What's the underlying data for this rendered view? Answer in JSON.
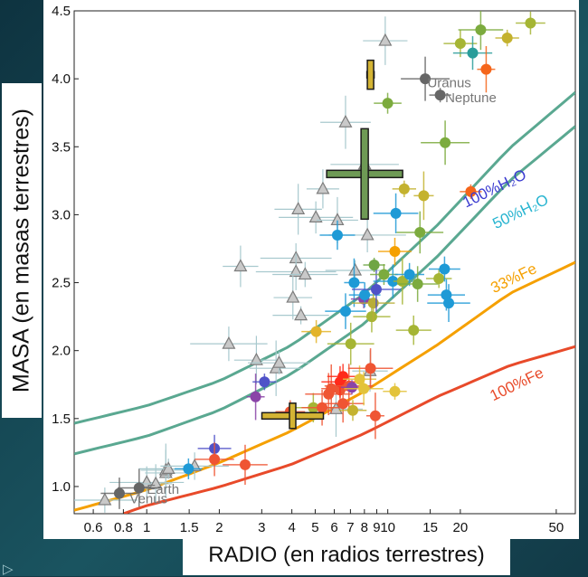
{
  "axes": {
    "ylabel": "MASA (en masas terrestres)",
    "xlabel": "RADIO (en radios terrestres)"
  },
  "nav": {
    "arrow_icon": "play-outline-icon"
  },
  "chart_data": {
    "type": "scatter",
    "x": {
      "scale": "log",
      "lim": [
        0.5,
        60
      ],
      "ticks": [
        0.6,
        0.8,
        1,
        1.5,
        2,
        3,
        4,
        5,
        6,
        7,
        8,
        9,
        10,
        15,
        20,
        50
      ],
      "tick_labels": [
        "0.6",
        "0.8",
        "1",
        "1.5",
        "2",
        "3",
        "4",
        "5",
        "6",
        "7",
        "8",
        "9",
        "10",
        "15",
        "20",
        "50"
      ]
    },
    "y": {
      "lim": [
        0.8,
        4.5
      ],
      "ticks": [
        1.0,
        1.5,
        2.0,
        2.5,
        3.0,
        3.5,
        4.0,
        4.5
      ],
      "tick_labels": [
        "1.0",
        "1.5",
        "2.0",
        "2.5",
        "3.0",
        "3.5",
        "4.0",
        "4.5"
      ]
    },
    "grid": false,
    "curves": [
      {
        "label": "100%H₂O",
        "color": "#3b3bd0",
        "line_color": "#5aa891",
        "x": [
          0.5,
          1,
          2,
          4,
          8,
          16,
          32,
          60
        ],
        "y": [
          1.465,
          1.594,
          1.776,
          2.04,
          2.42,
          2.92,
          3.49,
          3.9
        ],
        "label_at": [
          28.3,
          3.16
        ]
      },
      {
        "label": "50%H₂O",
        "color": "#27b4d0",
        "line_color": "#5aa891",
        "x": [
          0.5,
          1,
          2,
          4,
          8,
          16,
          32,
          60
        ],
        "y": [
          1.24,
          1.37,
          1.56,
          1.83,
          2.2,
          2.69,
          3.25,
          3.65
        ],
        "label_at": [
          36.3,
          2.99
        ]
      },
      {
        "label": "33%Fe",
        "color": "#f5a000",
        "line_color": "#f5a000",
        "x": [
          0.5,
          1,
          2,
          4,
          8,
          16,
          32,
          60
        ],
        "y": [
          0.825,
          0.975,
          1.175,
          1.41,
          1.7,
          2.04,
          2.42,
          2.65
        ],
        "label_at": [
          34.0,
          2.5
        ]
      },
      {
        "label": "100%Fe",
        "color": "#e84a2a",
        "line_color": "#e84a2a",
        "x": [
          0.8,
          1,
          2,
          4,
          8,
          16,
          32,
          60
        ],
        "y": [
          0.8,
          0.86,
          0.997,
          1.164,
          1.39,
          1.66,
          1.89,
          2.03
        ],
        "label_at": [
          35.0,
          1.72
        ]
      }
    ],
    "annotations": [
      {
        "text": "Uranus",
        "x": 14.6,
        "y": 3.97,
        "color": "#777777"
      },
      {
        "text": "Neptune",
        "x": 17.3,
        "y": 3.86,
        "color": "#777777"
      },
      {
        "text": "Earth",
        "x": 1.0,
        "y": 0.98,
        "color": "#777777"
      },
      {
        "text": "Venus",
        "x": 0.85,
        "y": 0.91,
        "color": "#777777"
      }
    ],
    "points": [
      {
        "shape": "triangle",
        "x": 0.67,
        "y": 0.9
      },
      {
        "shape": "triangle",
        "x": 1.0,
        "y": 1.03
      },
      {
        "shape": "triangle",
        "x": 1.09,
        "y": 1.02
      },
      {
        "shape": "triangle",
        "x": 1.2,
        "y": 1.1
      },
      {
        "shape": "triangle",
        "x": 1.2,
        "y": 1.12
      },
      {
        "shape": "triangle",
        "x": 1.23,
        "y": 1.13
      },
      {
        "shape": "triangle",
        "x": 1.58,
        "y": 1.15
      },
      {
        "shape": "triangle",
        "x": 2.19,
        "y": 2.05
      },
      {
        "shape": "triangle",
        "x": 2.45,
        "y": 2.62
      },
      {
        "shape": "triangle",
        "x": 2.85,
        "y": 1.93
      },
      {
        "shape": "triangle",
        "x": 3.44,
        "y": 1.87
      },
      {
        "shape": "triangle",
        "x": 3.54,
        "y": 1.91
      },
      {
        "shape": "triangle",
        "x": 4.16,
        "y": 2.68
      },
      {
        "shape": "triangle",
        "x": 4.16,
        "y": 2.58
      },
      {
        "shape": "triangle",
        "x": 4.04,
        "y": 2.39
      },
      {
        "shape": "triangle",
        "x": 4.25,
        "y": 3.04
      },
      {
        "shape": "triangle",
        "x": 4.36,
        "y": 2.26
      },
      {
        "shape": "triangle",
        "x": 4.54,
        "y": 2.56
      },
      {
        "shape": "triangle",
        "x": 5.03,
        "y": 2.98
      },
      {
        "shape": "triangle",
        "x": 5.38,
        "y": 3.19
      },
      {
        "shape": "triangle",
        "x": 6.18,
        "y": 2.96
      },
      {
        "shape": "triangle",
        "x": 6.68,
        "y": 3.68
      },
      {
        "shape": "triangle",
        "x": 7.32,
        "y": 2.59
      },
      {
        "shape": "triangle",
        "x": 8.02,
        "y": 3.37
      },
      {
        "shape": "triangle",
        "x": 8.23,
        "y": 2.85
      },
      {
        "shape": "triangle",
        "x": 8.44,
        "y": 1.85
      },
      {
        "shape": "triangle",
        "x": 9.76,
        "y": 4.28
      },
      {
        "shape": "triangle",
        "x": 6.1,
        "y": 1.57
      },
      {
        "shape": "dot",
        "x": 0.77,
        "y": 0.95,
        "color": "#666666"
      },
      {
        "shape": "dot",
        "x": 0.93,
        "y": 0.99,
        "color": "#666666"
      },
      {
        "shape": "dot",
        "x": 14.3,
        "y": 4.0,
        "color": "#666666"
      },
      {
        "shape": "dot",
        "x": 16.5,
        "y": 3.88,
        "color": "#666666"
      },
      {
        "shape": "dot",
        "x": 1.49,
        "y": 1.13,
        "color": "#1e9ad6"
      },
      {
        "shape": "dot",
        "x": 1.91,
        "y": 1.28,
        "color": "#4f52c8"
      },
      {
        "shape": "dot",
        "x": 1.91,
        "y": 1.2,
        "color": "#ef5533"
      },
      {
        "shape": "dot",
        "x": 2.56,
        "y": 1.16,
        "color": "#ef5533"
      },
      {
        "shape": "dot",
        "x": 2.83,
        "y": 1.66,
        "color": "#8a44a8"
      },
      {
        "shape": "dot",
        "x": 3.08,
        "y": 1.77,
        "color": "#4f52c8"
      },
      {
        "shape": "dot",
        "x": 3.94,
        "y": 1.55,
        "color": "#ef5533"
      },
      {
        "shape": "dot",
        "x": 4.91,
        "y": 1.58,
        "color": "#a5b534"
      },
      {
        "shape": "dot",
        "x": 5.34,
        "y": 1.58,
        "color": "#ef5533"
      },
      {
        "shape": "dot",
        "x": 5.68,
        "y": 1.68,
        "color": "#ef5533"
      },
      {
        "shape": "dot",
        "x": 5.83,
        "y": 1.72,
        "color": "#ef5533"
      },
      {
        "shape": "dot",
        "x": 6.34,
        "y": 1.71,
        "color": "#ef5533"
      },
      {
        "shape": "dot",
        "x": 6.52,
        "y": 1.81,
        "color": "#ff2a1a"
      },
      {
        "shape": "dot",
        "x": 6.34,
        "y": 1.77,
        "color": "#ff2a1a"
      },
      {
        "shape": "dot",
        "x": 6.52,
        "y": 1.61,
        "color": "#ef5533"
      },
      {
        "shape": "dot",
        "x": 6.9,
        "y": 1.74,
        "color": "#ef5533"
      },
      {
        "shape": "dot",
        "x": 7.1,
        "y": 1.73,
        "color": "#8a44a8"
      },
      {
        "shape": "dot",
        "x": 7.16,
        "y": 1.56,
        "color": "#c4b22e"
      },
      {
        "shape": "dot",
        "x": 7.64,
        "y": 1.79,
        "color": "#e3c33a"
      },
      {
        "shape": "dot",
        "x": 7.95,
        "y": 1.72,
        "color": "#e3c33a"
      },
      {
        "shape": "dot",
        "x": 8.48,
        "y": 1.87,
        "color": "#ef5533"
      },
      {
        "shape": "dot",
        "x": 8.88,
        "y": 1.52,
        "color": "#ef5533"
      },
      {
        "shape": "dot",
        "x": 10.7,
        "y": 1.7,
        "color": "#e3c33a"
      },
      {
        "shape": "dot",
        "x": 5.05,
        "y": 2.14,
        "color": "#e3b42a"
      },
      {
        "shape": "dot",
        "x": 6.18,
        "y": 2.85,
        "color": "#1e9ad6"
      },
      {
        "shape": "dot",
        "x": 6.68,
        "y": 2.29,
        "color": "#1e9ad6"
      },
      {
        "shape": "dot",
        "x": 7.02,
        "y": 2.05,
        "color": "#a5b534"
      },
      {
        "shape": "dot",
        "x": 7.25,
        "y": 2.5,
        "color": "#1e9ad6"
      },
      {
        "shape": "dot",
        "x": 7.95,
        "y": 2.38,
        "color": "#8a44a8"
      },
      {
        "shape": "dot",
        "x": 8.02,
        "y": 2.41,
        "color": "#1e9ad6"
      },
      {
        "shape": "dot",
        "x": 8.58,
        "y": 2.25,
        "color": "#a5b534"
      },
      {
        "shape": "dot",
        "x": 8.71,
        "y": 2.35,
        "color": "#b8ad37"
      },
      {
        "shape": "dot",
        "x": 8.96,
        "y": 2.45,
        "color": "#4f52c8"
      },
      {
        "shape": "dot",
        "x": 8.78,
        "y": 2.63,
        "color": "#6fa544"
      },
      {
        "shape": "dot",
        "x": 9.64,
        "y": 2.56,
        "color": "#7cab3e"
      },
      {
        "shape": "dot",
        "x": 10.7,
        "y": 2.73,
        "color": "#f5a000"
      },
      {
        "shape": "dot",
        "x": 10.5,
        "y": 2.51,
        "color": "#1e9ad6"
      },
      {
        "shape": "dot",
        "x": 10.8,
        "y": 3.01,
        "color": "#1e9ad6"
      },
      {
        "shape": "dot",
        "x": 11.5,
        "y": 2.51,
        "color": "#a5b534"
      },
      {
        "shape": "dot",
        "x": 11.7,
        "y": 3.19,
        "color": "#c4b22e"
      },
      {
        "shape": "dot",
        "x": 12.3,
        "y": 2.56,
        "color": "#1e9ad6"
      },
      {
        "shape": "dot",
        "x": 12.8,
        "y": 2.15,
        "color": "#a5b534"
      },
      {
        "shape": "dot",
        "x": 13.3,
        "y": 2.49,
        "color": "#7cab3e"
      },
      {
        "shape": "dot",
        "x": 13.6,
        "y": 2.87,
        "color": "#7cab3e"
      },
      {
        "shape": "dot",
        "x": 14.1,
        "y": 3.14,
        "color": "#c4b22e"
      },
      {
        "shape": "dot",
        "x": 16.3,
        "y": 2.53,
        "color": "#a5b534"
      },
      {
        "shape": "dot",
        "x": 17.2,
        "y": 2.6,
        "color": "#1e9ad6"
      },
      {
        "shape": "dot",
        "x": 17.5,
        "y": 2.41,
        "color": "#1e9ad6"
      },
      {
        "shape": "dot",
        "x": 17.9,
        "y": 2.35,
        "color": "#1e9ad6"
      },
      {
        "shape": "dot",
        "x": 17.3,
        "y": 3.53,
        "color": "#7cab3e"
      },
      {
        "shape": "dot",
        "x": 22.1,
        "y": 3.17,
        "color": "#f5651a"
      },
      {
        "shape": "dot",
        "x": 9.99,
        "y": 3.82,
        "color": "#7cab3e"
      },
      {
        "shape": "dot",
        "x": 20.0,
        "y": 4.26,
        "color": "#a5b534"
      },
      {
        "shape": "dot",
        "x": 22.5,
        "y": 4.19,
        "color": "#2a9d9a"
      },
      {
        "shape": "dot",
        "x": 24.3,
        "y": 4.36,
        "color": "#7cab3e"
      },
      {
        "shape": "dot",
        "x": 25.6,
        "y": 4.07,
        "color": "#f5651a"
      },
      {
        "shape": "dot",
        "x": 31.3,
        "y": 4.3,
        "color": "#c4b22e"
      },
      {
        "shape": "dot",
        "x": 39.1,
        "y": 4.41,
        "color": "#a5b534"
      },
      {
        "shape": "cross",
        "x": 4.03,
        "y": 1.52,
        "color": "#d4b434"
      },
      {
        "shape": "cross",
        "x": 8.48,
        "y": 4.03,
        "color": "#d4b434"
      },
      {
        "shape": "cross",
        "x": 8.02,
        "y": 3.3,
        "color": "#6e9a55"
      }
    ]
  }
}
